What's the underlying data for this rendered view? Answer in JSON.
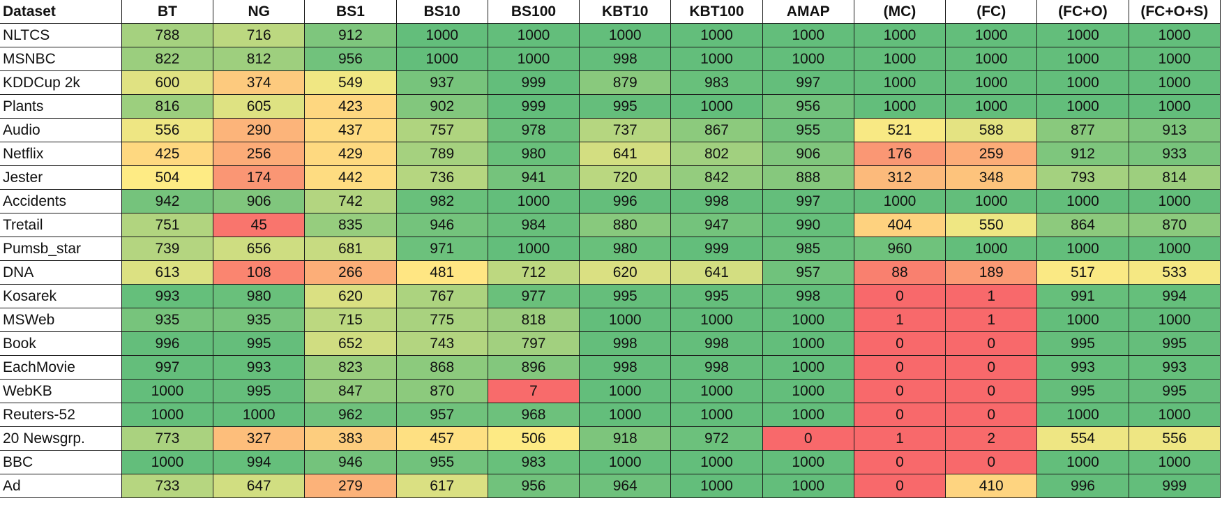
{
  "table": {
    "header": [
      "Dataset",
      "BT",
      "NG",
      "BS1",
      "BS10",
      "BS100",
      "KBT10",
      "KBT100",
      "AMAP",
      "(MC)",
      "(FC)",
      "(FC+O)",
      "(FC+O+S)"
    ],
    "rows": [
      [
        "NLTCS",
        788,
        716,
        912,
        1000,
        1000,
        1000,
        1000,
        1000,
        1000,
        1000,
        1000,
        1000
      ],
      [
        "MSNBC",
        822,
        812,
        956,
        1000,
        1000,
        998,
        1000,
        1000,
        1000,
        1000,
        1000,
        1000
      ],
      [
        "KDDCup 2k",
        600,
        374,
        549,
        937,
        999,
        879,
        983,
        997,
        1000,
        1000,
        1000,
        1000
      ],
      [
        "Plants",
        816,
        605,
        423,
        902,
        999,
        995,
        1000,
        956,
        1000,
        1000,
        1000,
        1000
      ],
      [
        "Audio",
        556,
        290,
        437,
        757,
        978,
        737,
        867,
        955,
        521,
        588,
        877,
        913
      ],
      [
        "Netflix",
        425,
        256,
        429,
        789,
        980,
        641,
        802,
        906,
        176,
        259,
        912,
        933
      ],
      [
        "Jester",
        504,
        174,
        442,
        736,
        941,
        720,
        842,
        888,
        312,
        348,
        793,
        814
      ],
      [
        "Accidents",
        942,
        906,
        742,
        982,
        1000,
        996,
        998,
        997,
        1000,
        1000,
        1000,
        1000
      ],
      [
        "Tretail",
        751,
        45,
        835,
        946,
        984,
        880,
        947,
        990,
        404,
        550,
        864,
        870
      ],
      [
        "Pumsb_star",
        739,
        656,
        681,
        971,
        1000,
        980,
        999,
        985,
        960,
        1000,
        1000,
        1000
      ],
      [
        "DNA",
        613,
        108,
        266,
        481,
        712,
        620,
        641,
        957,
        88,
        189,
        517,
        533
      ],
      [
        "Kosarek",
        993,
        980,
        620,
        767,
        977,
        995,
        995,
        998,
        0,
        1,
        991,
        994
      ],
      [
        "MSWeb",
        935,
        935,
        715,
        775,
        818,
        1000,
        1000,
        1000,
        1,
        1,
        1000,
        1000
      ],
      [
        "Book",
        996,
        995,
        652,
        743,
        797,
        998,
        998,
        1000,
        0,
        0,
        995,
        995
      ],
      [
        "EachMovie",
        997,
        993,
        823,
        868,
        896,
        998,
        998,
        1000,
        0,
        0,
        993,
        993
      ],
      [
        "WebKB",
        1000,
        995,
        847,
        870,
        7,
        1000,
        1000,
        1000,
        0,
        0,
        995,
        995
      ],
      [
        "Reuters-52",
        1000,
        1000,
        962,
        957,
        968,
        1000,
        1000,
        1000,
        0,
        0,
        1000,
        1000
      ],
      [
        "20 Newsgrp.",
        773,
        327,
        383,
        457,
        506,
        918,
        972,
        0,
        1,
        2,
        554,
        556
      ],
      [
        "BBC",
        1000,
        994,
        946,
        955,
        983,
        1000,
        1000,
        1000,
        0,
        0,
        1000,
        1000
      ],
      [
        "Ad",
        733,
        647,
        279,
        617,
        956,
        964,
        1000,
        1000,
        0,
        410,
        996,
        999
      ]
    ]
  }
}
